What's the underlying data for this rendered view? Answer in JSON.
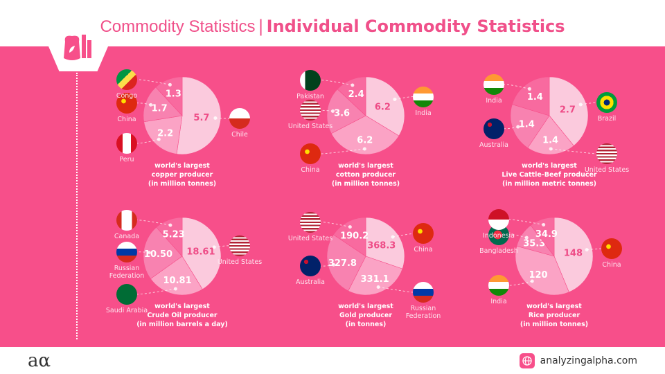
{
  "header": {
    "title_light": "Commodity Statistics",
    "separator": "|",
    "title_bold": "Individual Commodity Statistics"
  },
  "footer": {
    "logo": "aα",
    "site": "analyzingalpha.com"
  },
  "colors": {
    "background": "#f74f8a",
    "slice_light": "#fbcadd",
    "slice_mid": "#fba3c5",
    "slice_dark": "#f882b0",
    "slice_darker": "#f86a9f",
    "label_dark": "#ee4b86"
  },
  "chart_data": [
    {
      "type": "pie",
      "caption": [
        "world's largest",
        "copper producer",
        "(in million tonnes)"
      ],
      "slices": [
        {
          "country": "Chile",
          "value": 5.7,
          "label": "5.7"
        },
        {
          "country": "Peru",
          "value": 2.2,
          "label": "2.2"
        },
        {
          "country": "China",
          "value": 1.7,
          "label": "1.7"
        },
        {
          "country": "Congo",
          "value": 1.3,
          "label": "1.3"
        }
      ]
    },
    {
      "type": "pie",
      "caption": [
        "world's largest",
        "cotton producer",
        "(in million tonnes)"
      ],
      "slices": [
        {
          "country": "India",
          "value": 6.2,
          "label": "6.2"
        },
        {
          "country": "China",
          "value": 6.2,
          "label": "6.2"
        },
        {
          "country": "United States",
          "value": 3.6,
          "label": "3.6"
        },
        {
          "country": "Pakistan",
          "value": 2.4,
          "label": "2.4"
        }
      ]
    },
    {
      "type": "pie",
      "caption": [
        "world's largest",
        "Live Cattle-Beef producer",
        "(in million metric tonnes)"
      ],
      "slices": [
        {
          "country": "Brazil",
          "value": 2.7,
          "label": "2.7"
        },
        {
          "country": "United States",
          "value": 1.4,
          "label": "1.4"
        },
        {
          "country": "Australia",
          "value": 1.4,
          "label": "1.4"
        },
        {
          "country": "India",
          "value": 1.4,
          "label": "1.4"
        }
      ]
    },
    {
      "type": "pie",
      "caption": [
        "world's largest",
        "Crude Oil producer",
        "(in million barrels a day)"
      ],
      "slices": [
        {
          "country": "United States",
          "value": 18.61,
          "label": "18.61"
        },
        {
          "country": "Saudi Arabia",
          "value": 10.81,
          "label": "10.81"
        },
        {
          "country": "Russian Federation",
          "value": 10.5,
          "label": "10.50"
        },
        {
          "country": "Canada",
          "value": 5.23,
          "label": "5.23"
        }
      ]
    },
    {
      "type": "pie",
      "caption": [
        "world's largest",
        "Gold producer",
        "(in tonnes)"
      ],
      "slices": [
        {
          "country": "China",
          "value": 368.3,
          "label": "368.3"
        },
        {
          "country": "Russian Federation",
          "value": 331.1,
          "label": "331.1"
        },
        {
          "country": "Australia",
          "value": 327.8,
          "label": "327.8"
        },
        {
          "country": "United States",
          "value": 190.2,
          "label": "190.2"
        }
      ]
    },
    {
      "type": "pie",
      "caption": [
        "world's largest",
        "Rice producer",
        "(in million tonnes)"
      ],
      "slices": [
        {
          "country": "China",
          "value": 148,
          "label": "148"
        },
        {
          "country": "India",
          "value": 120,
          "label": "120"
        },
        {
          "country": "Bangladesh",
          "value": 35.3,
          "label": "35.3"
        },
        {
          "country": "Indonesia",
          "value": 34.9,
          "label": "34.9"
        }
      ]
    }
  ]
}
